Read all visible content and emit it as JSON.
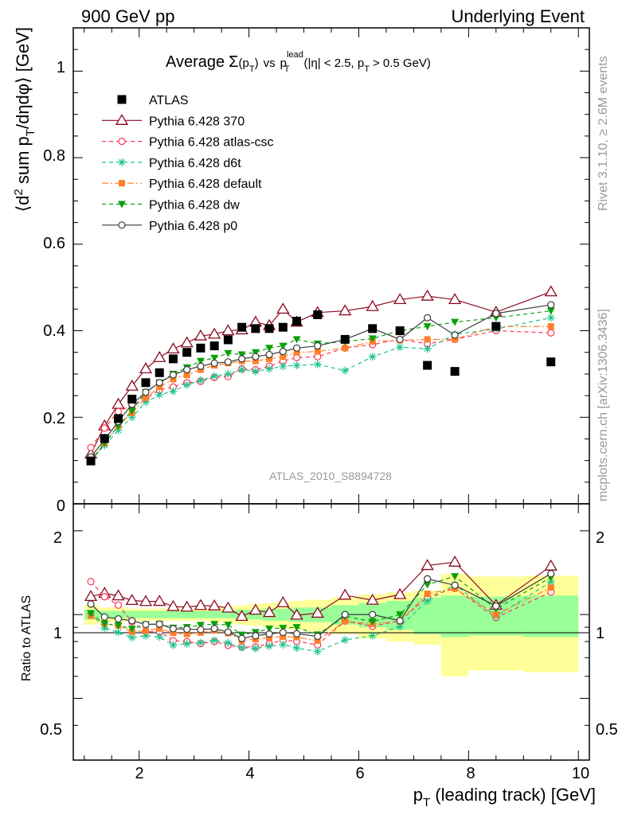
{
  "header": {
    "left": "900 GeV pp",
    "right": "Underlying Event"
  },
  "side_labels": {
    "top": "Rivet 3.1.10, ≥ 2.6M events",
    "bottom": "mcplots.cern.ch [arXiv:1306.3436]"
  },
  "watermark": "ATLAS_2010_S8894728",
  "title": {
    "main": "Average",
    "sigma": "Σ",
    "pt_open": "(p",
    "pt_sub": "T",
    "pt_close": ")",
    "vs": "vs",
    "p2": "p",
    "p2_sup": "lead",
    "p2_sub": "T",
    "cut_open": "(|η| < 2.5, p",
    "cut_sub": "T",
    "cut_close": "> 0.5 GeV)"
  },
  "y_label_main": {
    "open": "⟨d",
    "sup": "2",
    "mid": " sum p",
    "sub": "T",
    "close": "/dηdφ⟩ [GeV]"
  },
  "y_label_ratio": "Ratio to ATLAS",
  "x_label": {
    "p": "p",
    "sub": "T",
    "rest": " (leading track) [GeV]"
  },
  "colors": {
    "ATLAS": "#000000",
    "p370": "#8b0a1f",
    "atlas_csc": "#ff3355",
    "d6t": "#1fc48c",
    "default": "#ff7f2a",
    "dw": "#0aa00a",
    "p0": "#3a3a3a",
    "band_stat": "#99ff99",
    "band_total": "#ffff99"
  },
  "chart_data": {
    "type": "scatter",
    "xlim": [
      0.8,
      10.2
    ],
    "ylim_main": [
      0,
      1.1
    ],
    "ylim_ratio": [
      0.3,
      2.5
    ],
    "x_ticks": [
      2,
      4,
      6,
      8,
      10
    ],
    "y_ticks_main": [
      0.2,
      0.4,
      0.6,
      0.8,
      1
    ],
    "y_ticks_ratio": [
      0.5,
      1,
      2
    ],
    "x": [
      1.12,
      1.37,
      1.62,
      1.87,
      2.12,
      2.37,
      2.62,
      2.87,
      3.12,
      3.37,
      3.62,
      3.87,
      4.12,
      4.37,
      4.62,
      4.87,
      5.25,
      5.75,
      6.25,
      6.75,
      7.25,
      7.75,
      8.5,
      9.5
    ],
    "series": [
      {
        "name": "ATLAS",
        "key": "ATLAS",
        "marker": "square",
        "line": "none",
        "values": [
          0.099,
          0.151,
          0.197,
          0.242,
          0.28,
          0.303,
          0.335,
          0.35,
          0.36,
          0.365,
          0.379,
          0.408,
          0.405,
          0.405,
          0.408,
          0.422,
          0.437,
          0.38,
          0.405,
          0.4,
          0.32,
          0.306,
          0.41,
          0.328
        ]
      },
      {
        "name": "Pythia 6.428 370",
        "key": "p370",
        "marker": "triangle-open",
        "line": "solid",
        "values": [
          0.115,
          0.18,
          0.23,
          0.272,
          0.312,
          0.338,
          0.358,
          0.372,
          0.388,
          0.392,
          0.4,
          0.402,
          0.42,
          0.412,
          0.45,
          0.42,
          0.442,
          0.446,
          0.456,
          0.472,
          0.48,
          0.472,
          0.443,
          0.49
        ]
      },
      {
        "name": "Pythia 6.428 atlas-csc",
        "key": "atlas_csc",
        "marker": "circle-open",
        "line": "dashed",
        "values": [
          0.13,
          0.175,
          0.213,
          0.228,
          0.243,
          0.263,
          0.27,
          0.28,
          0.283,
          0.292,
          0.294,
          0.312,
          0.31,
          0.318,
          0.33,
          0.338,
          0.34,
          0.36,
          0.368,
          0.38,
          0.37,
          0.38,
          0.4,
          0.395
        ]
      },
      {
        "name": "Pythia 6.428 d6t",
        "key": "d6t",
        "marker": "star",
        "line": "dashed",
        "values": [
          0.1,
          0.135,
          0.17,
          0.2,
          0.235,
          0.252,
          0.26,
          0.275,
          0.285,
          0.295,
          0.3,
          0.31,
          0.306,
          0.312,
          0.318,
          0.32,
          0.322,
          0.308,
          0.34,
          0.362,
          0.358,
          0.392,
          0.404,
          0.43
        ]
      },
      {
        "name": "Pythia 6.428 default",
        "key": "default",
        "marker": "square-filled",
        "line": "dashdot",
        "values": [
          0.098,
          0.14,
          0.18,
          0.21,
          0.245,
          0.27,
          0.288,
          0.298,
          0.31,
          0.32,
          0.325,
          0.33,
          0.33,
          0.335,
          0.34,
          0.35,
          0.352,
          0.36,
          0.375,
          0.378,
          0.38,
          0.38,
          0.41,
          0.41
        ]
      },
      {
        "name": "Pythia 6.428 dw",
        "key": "dw",
        "marker": "triangle-down",
        "line": "dashed",
        "values": [
          0.1,
          0.14,
          0.18,
          0.215,
          0.258,
          0.28,
          0.3,
          0.315,
          0.33,
          0.337,
          0.348,
          0.345,
          0.35,
          0.36,
          0.365,
          0.38,
          0.37,
          0.375,
          0.382,
          0.4,
          0.41,
          0.42,
          0.43,
          0.446
        ]
      },
      {
        "name": "Pythia 6.428 p0",
        "key": "p0",
        "marker": "circle-open",
        "line": "solid",
        "values": [
          0.108,
          0.148,
          0.19,
          0.23,
          0.258,
          0.28,
          0.298,
          0.31,
          0.318,
          0.325,
          0.328,
          0.335,
          0.34,
          0.345,
          0.352,
          0.36,
          0.365,
          0.38,
          0.405,
          0.38,
          0.43,
          0.39,
          0.44,
          0.46
        ]
      }
    ],
    "ratio_band": [
      {
        "x": [
          1.0,
          1.25
        ],
        "stat": 0.04,
        "total": 0.08
      },
      {
        "x": [
          1.25,
          1.5
        ],
        "stat": 0.03,
        "total": 0.06
      },
      {
        "x": [
          1.5,
          1.75
        ],
        "stat": 0.03,
        "total": 0.06
      },
      {
        "x": [
          1.75,
          2.0
        ],
        "stat": 0.03,
        "total": 0.05
      },
      {
        "x": [
          2.0,
          2.25
        ],
        "stat": 0.03,
        "total": 0.05
      },
      {
        "x": [
          2.25,
          2.5
        ],
        "stat": 0.03,
        "total": 0.05
      },
      {
        "x": [
          2.5,
          2.75
        ],
        "stat": 0.03,
        "total": 0.05
      },
      {
        "x": [
          2.75,
          3.0
        ],
        "stat": 0.03,
        "total": 0.05
      },
      {
        "x": [
          3.0,
          3.25
        ],
        "stat": 0.03,
        "total": 0.05
      },
      {
        "x": [
          3.25,
          3.5
        ],
        "stat": 0.03,
        "total": 0.06
      },
      {
        "x": [
          3.5,
          3.75
        ],
        "stat": 0.03,
        "total": 0.07
      },
      {
        "x": [
          3.75,
          4.0
        ],
        "stat": 0.04,
        "total": 0.08
      },
      {
        "x": [
          4.0,
          4.25
        ],
        "stat": 0.04,
        "total": 0.09
      },
      {
        "x": [
          4.25,
          4.5
        ],
        "stat": 0.05,
        "total": 0.1
      },
      {
        "x": [
          4.5,
          4.75
        ],
        "stat": 0.05,
        "total": 0.11
      },
      {
        "x": [
          4.75,
          5.0
        ],
        "stat": 0.06,
        "total": 0.12
      },
      {
        "x": [
          5.0,
          5.5
        ],
        "stat": 0.06,
        "total": 0.13
      },
      {
        "x": [
          5.5,
          6.0
        ],
        "stat": 0.08,
        "total": 0.15
      },
      {
        "x": [
          6.0,
          6.5
        ],
        "stat": 0.1,
        "total": 0.18
      },
      {
        "x": [
          6.5,
          7.0
        ],
        "stat": 0.12,
        "total": 0.2
      },
      {
        "x": [
          7.0,
          7.5
        ],
        "stat": 0.15,
        "total": 0.22
      },
      {
        "x": [
          7.5,
          8.0
        ],
        "stat": 0.17,
        "total": 0.4
      },
      {
        "x": [
          8.0,
          9.0
        ],
        "stat": 0.16,
        "total": 0.37
      },
      {
        "x": [
          9.0,
          10.0
        ],
        "stat": 0.17,
        "total": 0.38
      }
    ]
  }
}
